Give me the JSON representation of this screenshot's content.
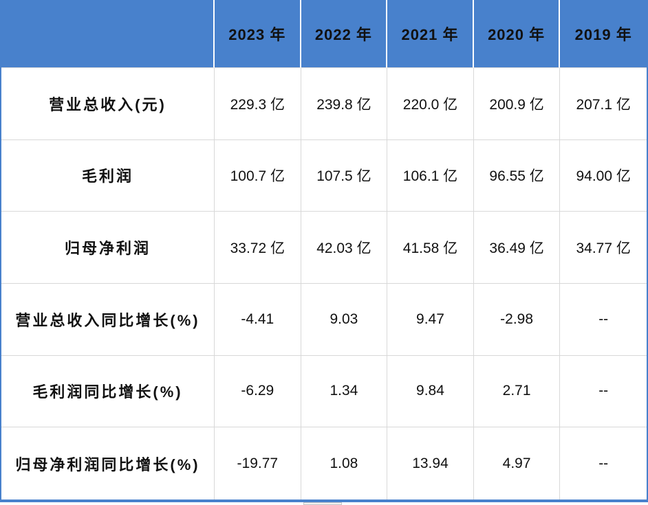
{
  "chart_data": {
    "type": "table",
    "title": "",
    "corner_label": "",
    "columns": [
      "2023 年",
      "2022 年",
      "2021 年",
      "2020 年",
      "2019 年"
    ],
    "rows": [
      {
        "label": "营业总收入(元)",
        "values": [
          "229.3 亿",
          "239.8 亿",
          "220.0 亿",
          "200.9 亿",
          "207.1 亿"
        ]
      },
      {
        "label": "毛利润",
        "values": [
          "100.7 亿",
          "107.5 亿",
          "106.1 亿",
          "96.55 亿",
          "94.00 亿"
        ]
      },
      {
        "label": "归母净利润",
        "values": [
          "33.72 亿",
          "42.03 亿",
          "41.58 亿",
          "36.49 亿",
          "34.77 亿"
        ]
      },
      {
        "label": "营业总收入同比增长(%)",
        "values": [
          "-4.41",
          "9.03",
          "9.47",
          "-2.98",
          "--"
        ]
      },
      {
        "label": "毛利润同比增长(%)",
        "values": [
          "-6.29",
          "1.34",
          "9.84",
          "2.71",
          "--"
        ]
      },
      {
        "label": "归母净利润同比增长(%)",
        "values": [
          "-19.77",
          "1.08",
          "13.94",
          "4.97",
          "--"
        ]
      }
    ],
    "layout": {
      "grid": "on",
      "header_position": "top",
      "row_label_position": "left"
    }
  },
  "colors": {
    "header_bg": "#4881CC",
    "outer_border": "#4881CC",
    "grid_line": "#D8D8D8",
    "header_divider": "#FFFFFF",
    "text": "#111111"
  }
}
